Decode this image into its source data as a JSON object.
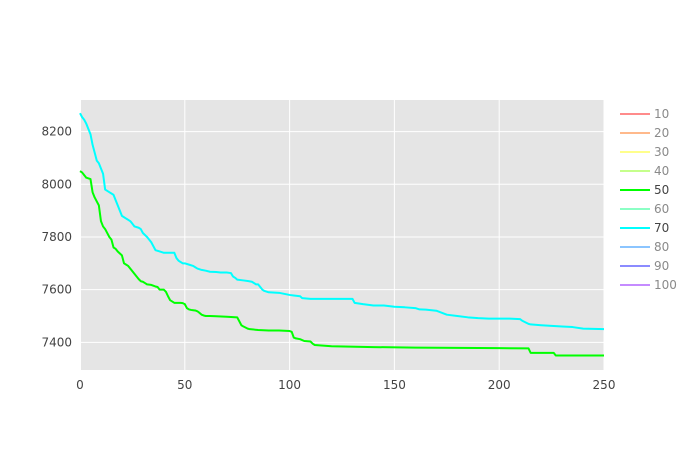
{
  "chart_data": {
    "type": "line",
    "xlim": [
      0,
      250
    ],
    "ylim": [
      7295,
      8320
    ],
    "x_ticks": [
      0,
      50,
      100,
      150,
      200,
      250
    ],
    "y_ticks": [
      7400,
      7600,
      7800,
      8000,
      8200
    ],
    "grid": true,
    "legend_placement": "right",
    "plot_background": "#e5e5e5",
    "legend": [
      {
        "label": "10",
        "color": "#ff7f7f",
        "visible": false
      },
      {
        "label": "20",
        "color": "#ffb27f",
        "visible": false
      },
      {
        "label": "30",
        "color": "#ffff7f",
        "visible": false
      },
      {
        "label": "40",
        "color": "#bfff7f",
        "visible": false
      },
      {
        "label": "50",
        "color": "#00ff00",
        "visible": true
      },
      {
        "label": "60",
        "color": "#7fffbf",
        "visible": false
      },
      {
        "label": "70",
        "color": "#00ffff",
        "visible": true
      },
      {
        "label": "80",
        "color": "#7fbfff",
        "visible": false
      },
      {
        "label": "90",
        "color": "#7f7fff",
        "visible": false
      },
      {
        "label": "100",
        "color": "#bf7fff",
        "visible": false
      }
    ],
    "series": [
      {
        "label": "50",
        "color": "#00ff00",
        "x": [
          0,
          1,
          2,
          3,
          5,
          6,
          7,
          9,
          10,
          11,
          12,
          14,
          15,
          16,
          17,
          18,
          20,
          21,
          22,
          23,
          25,
          26,
          28,
          29,
          30,
          31,
          32,
          34,
          35,
          36,
          37,
          38,
          40,
          41,
          42,
          43,
          45,
          47,
          48,
          49,
          50,
          51,
          52,
          53,
          54,
          55,
          56,
          57,
          58,
          59,
          60,
          61,
          62,
          65,
          70,
          75,
          76,
          77,
          78,
          80,
          81,
          85,
          90,
          95,
          100,
          101,
          102,
          103,
          105,
          107,
          110,
          111,
          112,
          120,
          140,
          160,
          180,
          200,
          214,
          215,
          226,
          227,
          228,
          250
        ],
        "y": [
          8050,
          8045,
          8035,
          8025,
          8020,
          7970,
          7950,
          7920,
          7860,
          7840,
          7830,
          7800,
          7790,
          7760,
          7755,
          7745,
          7730,
          7700,
          7695,
          7690,
          7670,
          7660,
          7640,
          7632,
          7630,
          7625,
          7620,
          7618,
          7615,
          7612,
          7610,
          7600,
          7600,
          7592,
          7575,
          7560,
          7550,
          7550,
          7550,
          7549,
          7545,
          7530,
          7525,
          7523,
          7522,
          7521,
          7518,
          7512,
          7505,
          7502,
          7500,
          7500,
          7500,
          7499,
          7497,
          7495,
          7480,
          7465,
          7460,
          7452,
          7450,
          7447,
          7445,
          7445,
          7443,
          7440,
          7418,
          7415,
          7412,
          7405,
          7403,
          7395,
          7390,
          7385,
          7382,
          7380,
          7379,
          7378,
          7377,
          7360,
          7360,
          7350,
          7350,
          7350
        ]
      },
      {
        "label": "70",
        "color": "#00ffff",
        "x": [
          0,
          1,
          2,
          3,
          4,
          5,
          6,
          7,
          8,
          9,
          10,
          11,
          12,
          14,
          15,
          16,
          17,
          18,
          19,
          20,
          22,
          24,
          25,
          26,
          28,
          29,
          30,
          32,
          33,
          34,
          35,
          36,
          38,
          40,
          45,
          46,
          47,
          48,
          49,
          50,
          52,
          54,
          55,
          56,
          58,
          60,
          62,
          65,
          67,
          70,
          72,
          73,
          74,
          75,
          78,
          80,
          82,
          84,
          85,
          86,
          87,
          88,
          90,
          95,
          100,
          102,
          105,
          106,
          110,
          115,
          120,
          125,
          130,
          131,
          135,
          140,
          145,
          150,
          155,
          160,
          162,
          165,
          170,
          175,
          180,
          185,
          190,
          195,
          200,
          205,
          210,
          211,
          214,
          215,
          220,
          230,
          235,
          240,
          250
        ],
        "y": [
          8270,
          8255,
          8245,
          8230,
          8210,
          8190,
          8150,
          8120,
          8090,
          8080,
          8060,
          8040,
          7980,
          7970,
          7965,
          7960,
          7940,
          7920,
          7900,
          7880,
          7870,
          7860,
          7850,
          7840,
          7835,
          7830,
          7815,
          7800,
          7790,
          7780,
          7765,
          7750,
          7745,
          7740,
          7740,
          7720,
          7710,
          7705,
          7700,
          7700,
          7695,
          7690,
          7685,
          7680,
          7675,
          7672,
          7668,
          7667,
          7665,
          7665,
          7663,
          7650,
          7645,
          7638,
          7635,
          7633,
          7630,
          7620,
          7620,
          7610,
          7600,
          7595,
          7590,
          7588,
          7580,
          7578,
          7575,
          7568,
          7565,
          7565,
          7565,
          7565,
          7565,
          7550,
          7545,
          7540,
          7540,
          7535,
          7533,
          7530,
          7525,
          7524,
          7520,
          7505,
          7500,
          7495,
          7492,
          7490,
          7490,
          7490,
          7488,
          7482,
          7470,
          7468,
          7465,
          7460,
          7458,
          7452,
          7450
        ]
      }
    ]
  }
}
